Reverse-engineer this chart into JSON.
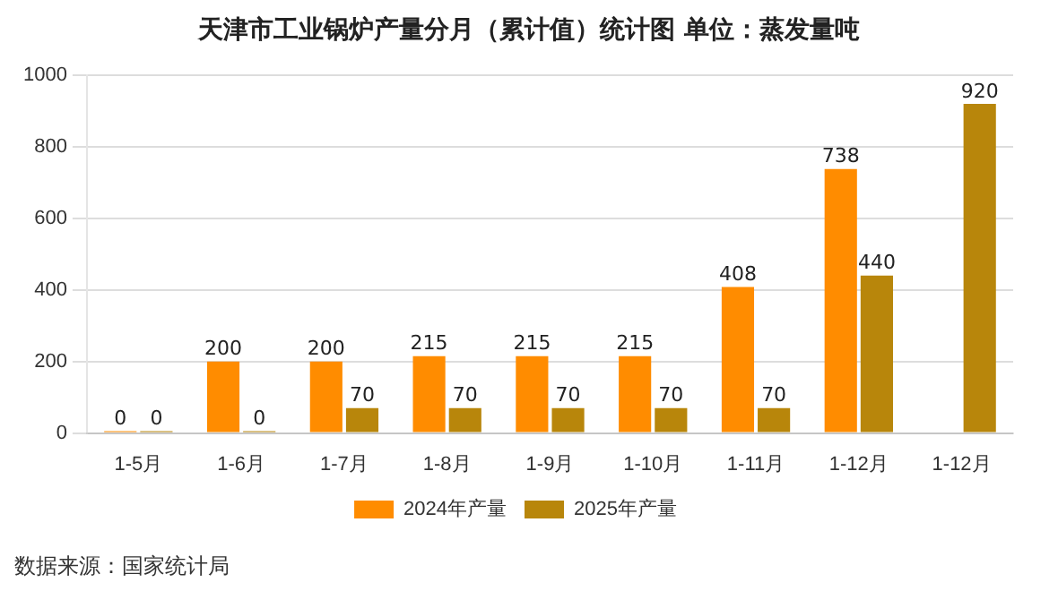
{
  "chart_data": {
    "type": "bar",
    "title": "天津市工业锅炉产量分月（累计值）统计图 单位：蒸发量吨",
    "categories": [
      "1-5月",
      "1-6月",
      "1-7月",
      "1-8月",
      "1-9月",
      "1-10月",
      "1-11月",
      "1-12月",
      "1-12月"
    ],
    "series": [
      {
        "name": "2024年产量",
        "color": "#ff8c00",
        "values": [
          0,
          200,
          200,
          215,
          215,
          215,
          408,
          738,
          null
        ]
      },
      {
        "name": "2025年产量",
        "color": "#b8860b",
        "values": [
          0,
          0,
          70,
          70,
          70,
          70,
          70,
          440,
          920
        ]
      }
    ],
    "ylim": [
      0,
      1000
    ],
    "yticks": [
      0,
      200,
      400,
      600,
      800,
      1000
    ],
    "grid": "y",
    "legend": "bottom",
    "data_labels": true,
    "annotations": [
      "数据来源：国家统计局"
    ]
  }
}
